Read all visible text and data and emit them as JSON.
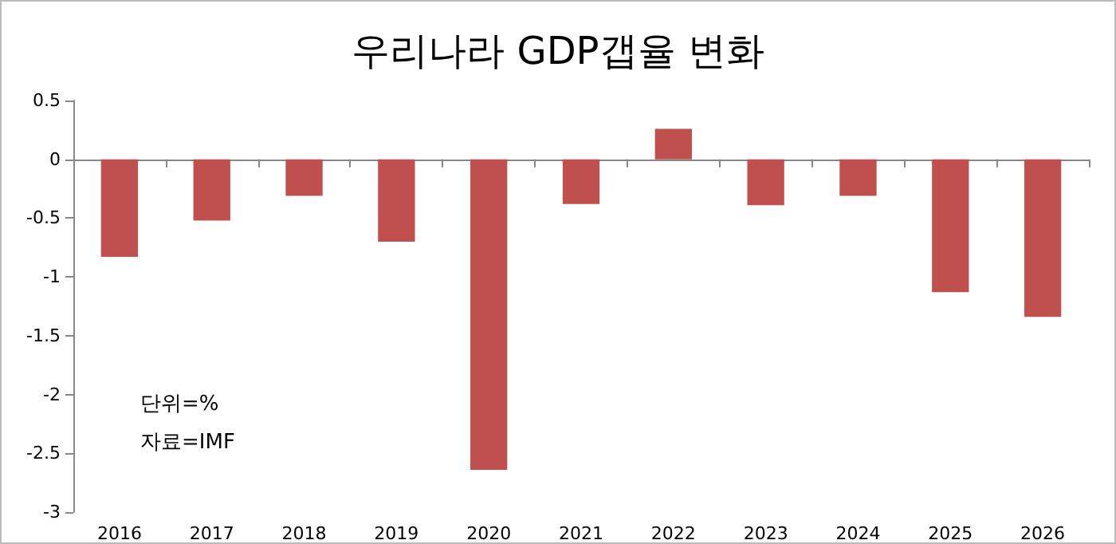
{
  "chart_data": {
    "type": "bar",
    "title": "우리나라 GDP갭율 변화",
    "categories": [
      "2016",
      "2017",
      "2018",
      "2019",
      "2020",
      "2021",
      "2022",
      "2023",
      "2024",
      "2025",
      "2026"
    ],
    "values": [
      -0.83,
      -0.52,
      -0.31,
      -0.7,
      -2.64,
      -0.38,
      0.26,
      -0.39,
      -0.31,
      -1.13,
      -1.34
    ],
    "color": "#c0504d",
    "ylim": [
      -3,
      0.5
    ],
    "yticks": [
      -3,
      -2.5,
      -2,
      -1.5,
      -1,
      -0.5,
      0,
      0.5
    ],
    "annotations": [
      "단위=%",
      "자료=IMF"
    ]
  }
}
